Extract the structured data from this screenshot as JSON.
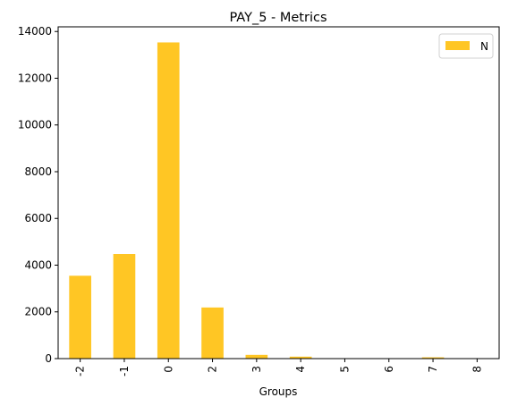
{
  "chart_data": {
    "type": "bar",
    "title": "PAY_5 - Metrics",
    "xlabel": "Groups",
    "ylabel": "",
    "categories": [
      "-2",
      "-1",
      "0",
      "2",
      "3",
      "4",
      "5",
      "6",
      "7",
      "8"
    ],
    "series": [
      {
        "name": "N",
        "values": [
          3546,
          4478,
          13532,
          2188,
          160,
          84,
          15,
          2,
          55,
          1
        ],
        "color": "#ffc624"
      }
    ],
    "ylim": [
      0,
      14200
    ],
    "yticks": [
      "0",
      "2000",
      "4000",
      "6000",
      "8000",
      "10000",
      "12000",
      "14000"
    ],
    "ytick_values": [
      0,
      2000,
      4000,
      6000,
      8000,
      10000,
      12000,
      14000
    ],
    "grid": false,
    "legend_position": "top-right"
  }
}
